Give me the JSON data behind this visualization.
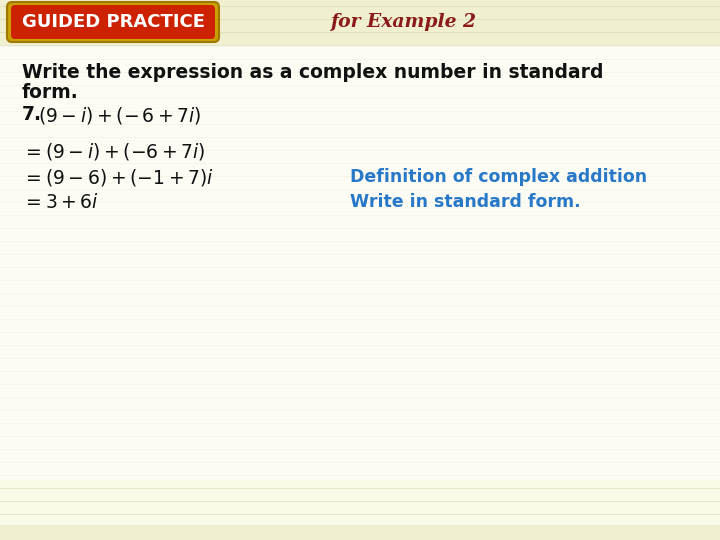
{
  "background_color": "#fafae8",
  "stripe_color": "#e8e8c8",
  "header_bg": "#cc2200",
  "header_border": "#c8a000",
  "header_text": "GUIDED PRACTICE",
  "header_text_color": "#ffffff",
  "for_example_text": "for Example 2",
  "for_example_color": "#8b1a1a",
  "instruction_line1": "Write the expression as a complex number in standard",
  "instruction_line2": "form.",
  "instruction_color": "#111111",
  "math_color": "#111111",
  "step2_right": "Definition of complex addition",
  "step3_right": "Write in standard form.",
  "annotation_color": "#2878c8",
  "body_fontsize": 13.5,
  "math_fontsize": 13.5,
  "annot_fontsize": 12.5
}
